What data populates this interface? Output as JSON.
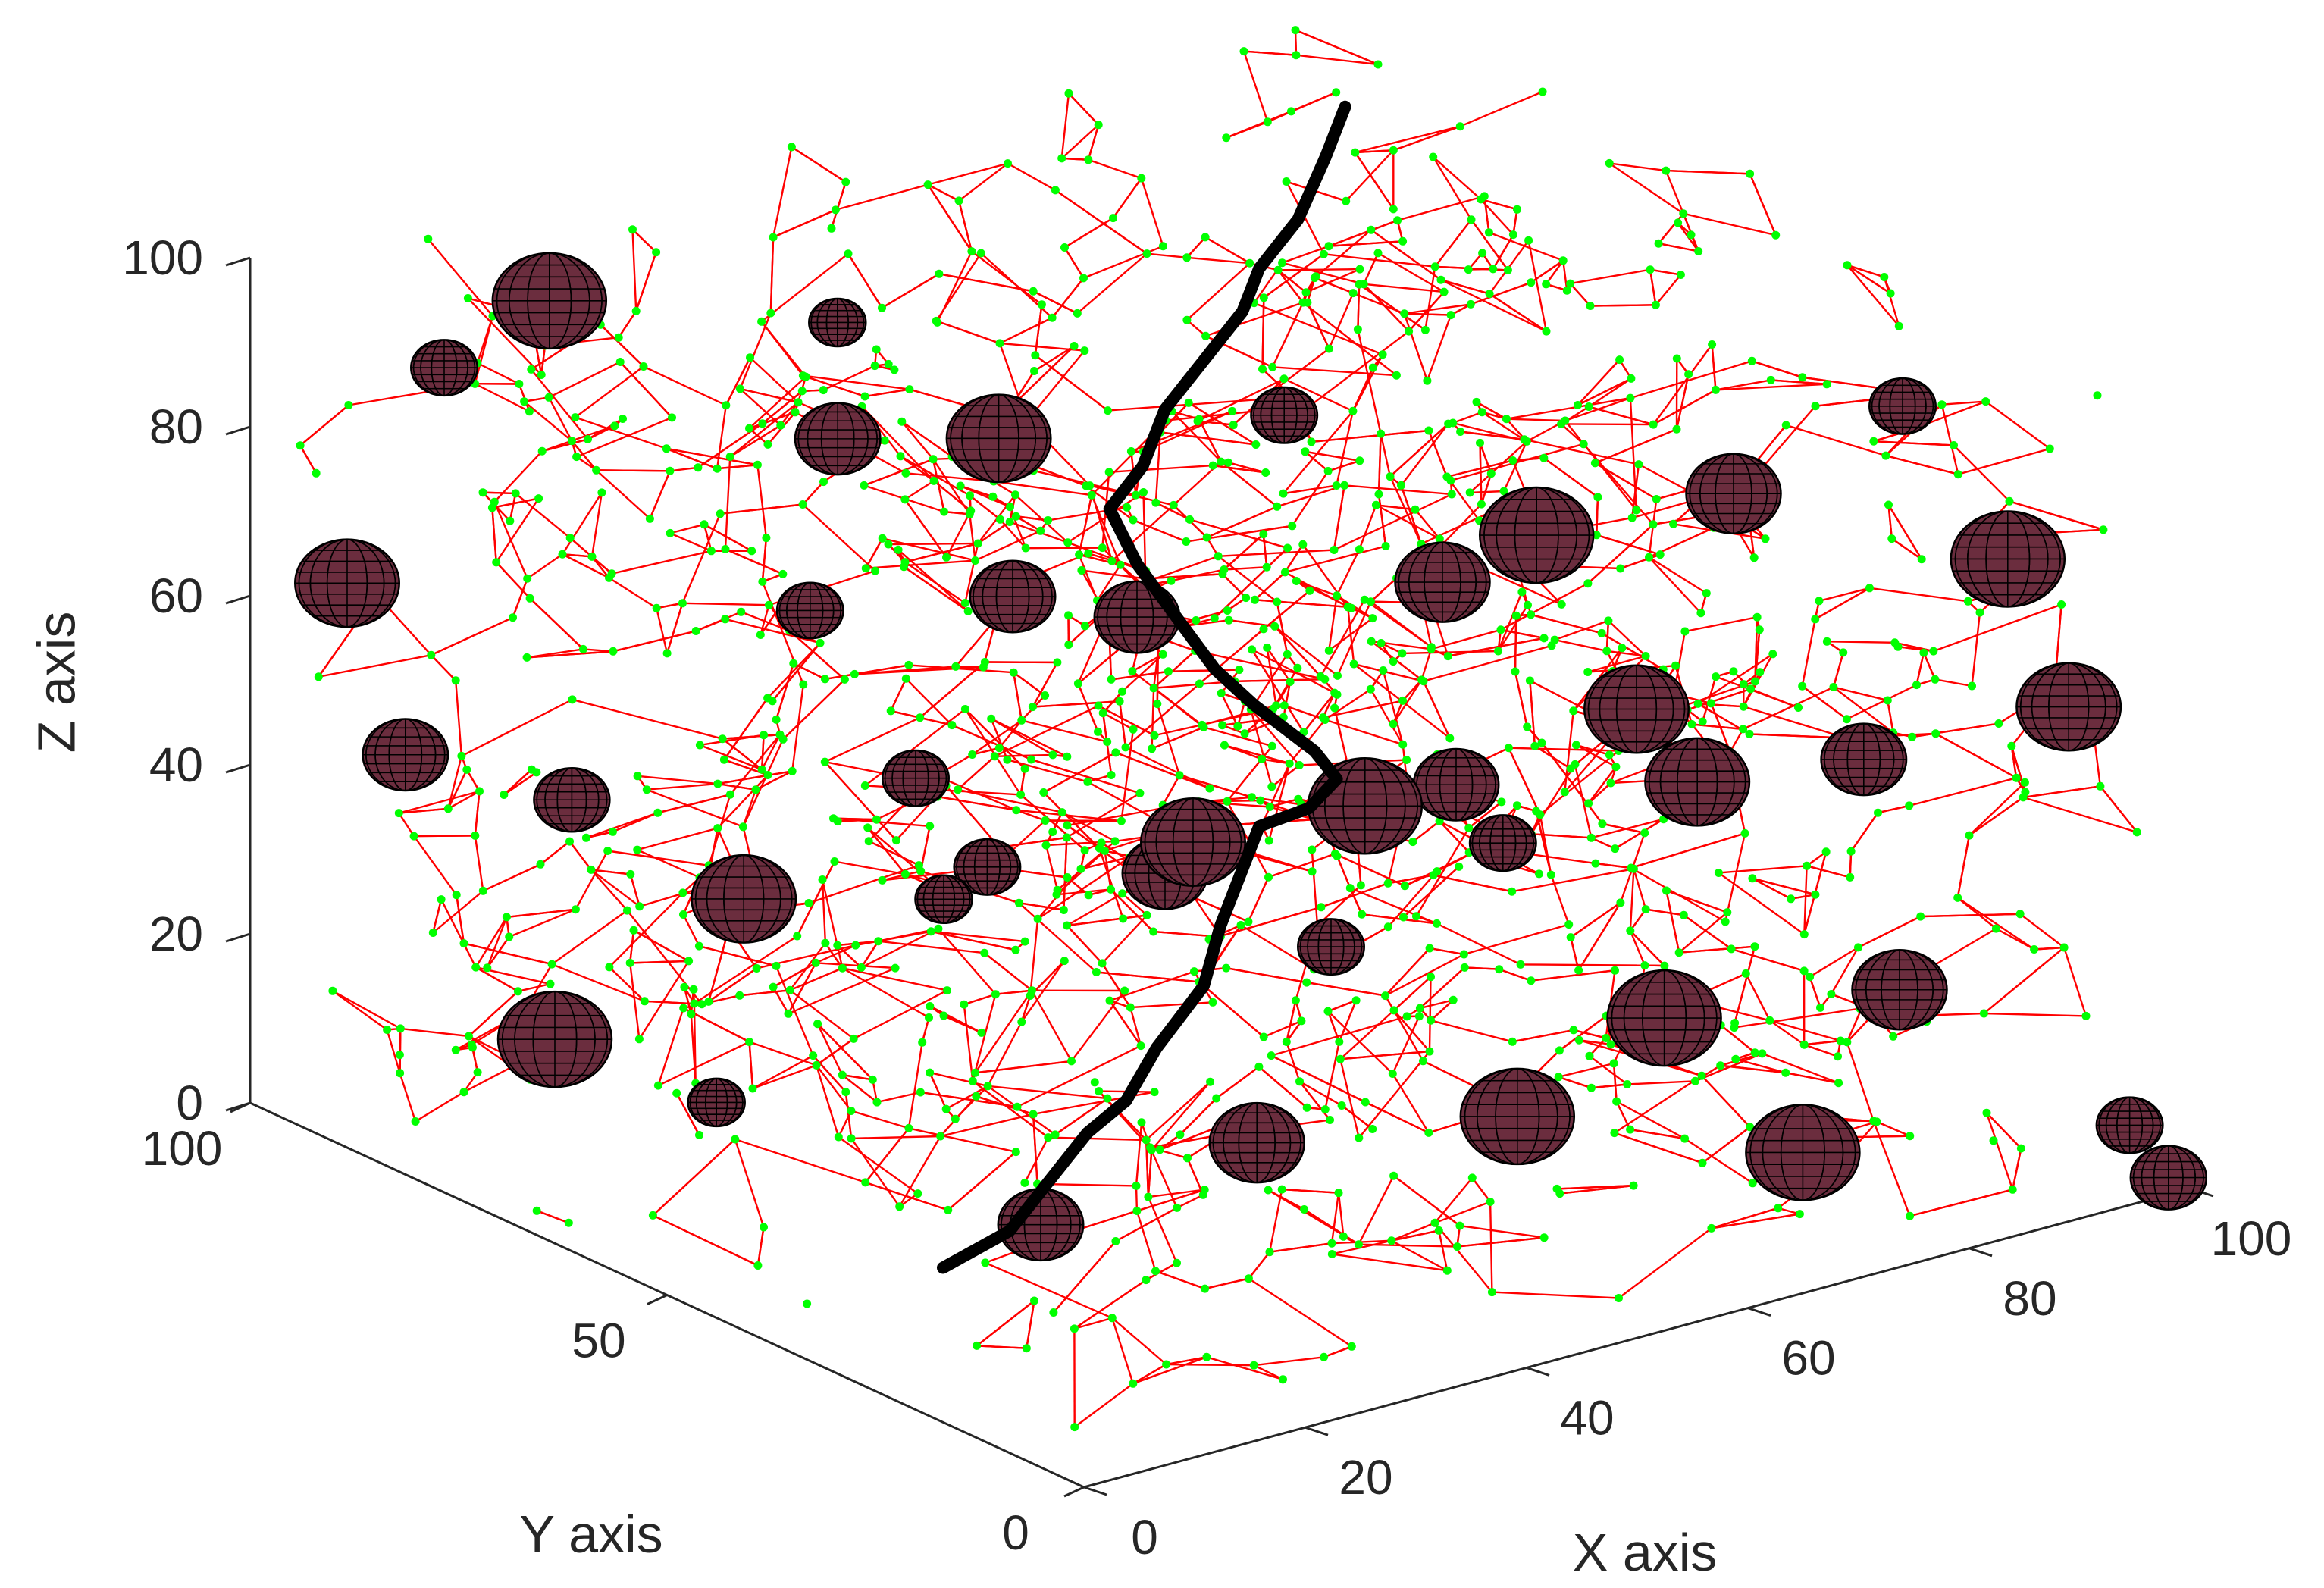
{
  "chart_data": {
    "type": "scatter3d",
    "title": "",
    "xlabel": "X axis",
    "ylabel": "Y axis",
    "zlabel": "Z axis",
    "xlim": [
      0,
      100
    ],
    "ylim": [
      0,
      100
    ],
    "zlim": [
      0,
      100
    ],
    "x_ticks": [
      "0",
      "20",
      "40",
      "60",
      "80",
      "100"
    ],
    "y_ticks": [
      "0",
      "50",
      "100"
    ],
    "z_ticks": [
      "0",
      "20",
      "40",
      "60",
      "80",
      "100"
    ],
    "grid": false,
    "colors": {
      "edges": "#ff0000",
      "nodes": "#00ff00",
      "spheres": "#6b2d3e",
      "sphere_edges": "#000000",
      "path": "#000000",
      "axes": "#262626"
    },
    "network": {
      "node_count_estimate": 1200,
      "edge_color_name": "red",
      "node_color_name": "green",
      "description": "random 3D network of nodes connected by short edges"
    },
    "obstacles": [
      {
        "x": 5,
        "y": 95,
        "z": 62,
        "r": 5.5
      },
      {
        "x": 10,
        "y": 90,
        "z": 88,
        "r": 3.5
      },
      {
        "x": 18,
        "y": 88,
        "z": 94,
        "r": 6.0
      },
      {
        "x": 14,
        "y": 80,
        "z": 40,
        "r": 4.0
      },
      {
        "x": 8,
        "y": 92,
        "z": 42,
        "r": 4.5
      },
      {
        "x": 22,
        "y": 70,
        "z": 30,
        "r": 5.5
      },
      {
        "x": 20,
        "y": 90,
        "z": 5,
        "r": 6.0
      },
      {
        "x": 30,
        "y": 60,
        "z": 46,
        "r": 3.5
      },
      {
        "x": 28,
        "y": 70,
        "z": 62,
        "r": 3.5
      },
      {
        "x": 32,
        "y": 72,
        "z": 80,
        "r": 4.5
      },
      {
        "x": 36,
        "y": 58,
        "z": 85,
        "r": 5.5
      },
      {
        "x": 35,
        "y": 55,
        "z": 68,
        "r": 4.5
      },
      {
        "x": 40,
        "y": 40,
        "z": 44,
        "r": 5.5
      },
      {
        "x": 42,
        "y": 35,
        "z": 10,
        "r": 5.0
      },
      {
        "x": 45,
        "y": 50,
        "z": 34,
        "r": 4.5
      },
      {
        "x": 48,
        "y": 30,
        "z": 50,
        "r": 6.0
      },
      {
        "x": 52,
        "y": 45,
        "z": 88,
        "r": 3.5
      },
      {
        "x": 55,
        "y": 30,
        "z": 74,
        "r": 5.0
      },
      {
        "x": 58,
        "y": 25,
        "z": 12,
        "r": 6.0
      },
      {
        "x": 60,
        "y": 35,
        "z": 46,
        "r": 4.5
      },
      {
        "x": 62,
        "y": 28,
        "z": 78,
        "r": 6.0
      },
      {
        "x": 65,
        "y": 20,
        "z": 60,
        "r": 5.5
      },
      {
        "x": 66,
        "y": 18,
        "z": 24,
        "r": 6.0
      },
      {
        "x": 70,
        "y": 15,
        "z": 86,
        "r": 5.0
      },
      {
        "x": 72,
        "y": 22,
        "z": 48,
        "r": 5.5
      },
      {
        "x": 74,
        "y": 12,
        "z": 8,
        "r": 6.0
      },
      {
        "x": 78,
        "y": 10,
        "z": 54,
        "r": 4.5
      },
      {
        "x": 80,
        "y": 8,
        "z": 96,
        "r": 3.5
      },
      {
        "x": 85,
        "y": 15,
        "z": 22,
        "r": 5.0
      },
      {
        "x": 88,
        "y": 6,
        "z": 76,
        "r": 6.0
      },
      {
        "x": 92,
        "y": 4,
        "z": 58,
        "r": 5.5
      },
      {
        "x": 96,
        "y": 2,
        "z": 8,
        "r": 3.5
      },
      {
        "x": 98,
        "y": 0,
        "z": 2,
        "r": 4.0
      },
      {
        "x": 50,
        "y": 60,
        "z": 58,
        "r": 4.5
      },
      {
        "x": 12,
        "y": 60,
        "z": 14,
        "r": 3.0
      },
      {
        "x": 25,
        "y": 50,
        "z": 38,
        "r": 3.0
      },
      {
        "x": 38,
        "y": 80,
        "z": 88,
        "r": 3.0
      },
      {
        "x": 60,
        "y": 50,
        "z": 20,
        "r": 3.5
      },
      {
        "x": 44,
        "y": 70,
        "z": 26,
        "r": 3.5
      },
      {
        "x": 30,
        "y": 45,
        "z": 0,
        "r": 4.5
      },
      {
        "x": 68,
        "y": 40,
        "z": 34,
        "r": 3.5
      }
    ],
    "path": [
      {
        "x": 40,
        "y": 70,
        "z": -20
      },
      {
        "x": 40,
        "y": 62,
        "z": -12
      },
      {
        "x": 42,
        "y": 60,
        "z": -6
      },
      {
        "x": 44,
        "y": 58,
        "z": 0
      },
      {
        "x": 46,
        "y": 56,
        "z": 4
      },
      {
        "x": 48,
        "y": 55,
        "z": 10
      },
      {
        "x": 50,
        "y": 52,
        "z": 18
      },
      {
        "x": 50,
        "y": 50,
        "z": 26
      },
      {
        "x": 51,
        "y": 49,
        "z": 32
      },
      {
        "x": 52,
        "y": 48,
        "z": 38
      },
      {
        "x": 55,
        "y": 46,
        "z": 40
      },
      {
        "x": 56,
        "y": 44,
        "z": 44
      },
      {
        "x": 54,
        "y": 44,
        "z": 48
      },
      {
        "x": 50,
        "y": 46,
        "z": 54
      },
      {
        "x": 48,
        "y": 48,
        "z": 58
      },
      {
        "x": 46,
        "y": 50,
        "z": 64
      },
      {
        "x": 44,
        "y": 52,
        "z": 70
      },
      {
        "x": 43,
        "y": 54,
        "z": 76
      },
      {
        "x": 46,
        "y": 54,
        "z": 80
      },
      {
        "x": 48,
        "y": 54,
        "z": 86
      },
      {
        "x": 50,
        "y": 52,
        "z": 92
      },
      {
        "x": 52,
        "y": 50,
        "z": 98
      },
      {
        "x": 52,
        "y": 48,
        "z": 104
      },
      {
        "x": 54,
        "y": 46,
        "z": 110
      },
      {
        "x": 55,
        "y": 44,
        "z": 118
      },
      {
        "x": 56,
        "y": 43,
        "z": 124
      }
    ]
  }
}
